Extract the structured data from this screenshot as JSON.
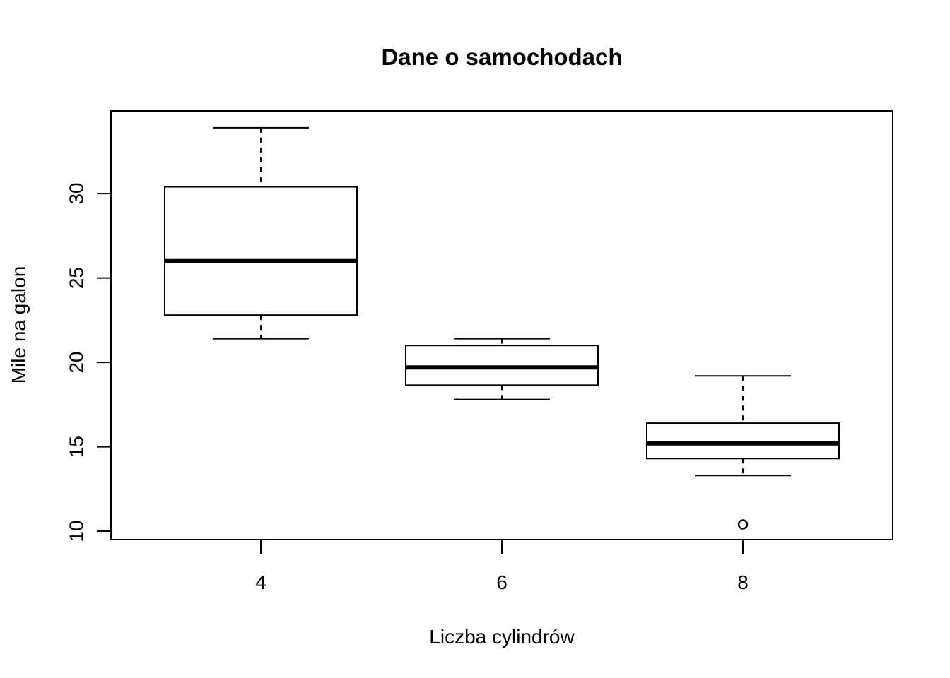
{
  "chart_data": {
    "type": "box",
    "title": "Dane o samochodach",
    "xlabel": "Liczba cylindrów",
    "ylabel": "Mile na galon",
    "ylim": [
      9.5,
      34.9
    ],
    "y_ticks": [
      10,
      15,
      20,
      25,
      30
    ],
    "categories": [
      "4",
      "6",
      "8"
    ],
    "boxes": [
      {
        "category": "4",
        "lower_whisker": 21.4,
        "q1": 22.8,
        "median": 26.0,
        "q3": 30.4,
        "upper_whisker": 33.9,
        "outliers": []
      },
      {
        "category": "6",
        "lower_whisker": 17.8,
        "q1": 18.65,
        "median": 19.7,
        "q3": 21.0,
        "upper_whisker": 21.4,
        "outliers": []
      },
      {
        "category": "8",
        "lower_whisker": 13.3,
        "q1": 14.3,
        "median": 15.2,
        "q3": 16.4,
        "upper_whisker": 19.2,
        "outliers": [
          10.4
        ]
      }
    ],
    "grid": false,
    "legend": "none"
  },
  "colors": {
    "background": "#ffffff",
    "stroke": "#000000"
  }
}
